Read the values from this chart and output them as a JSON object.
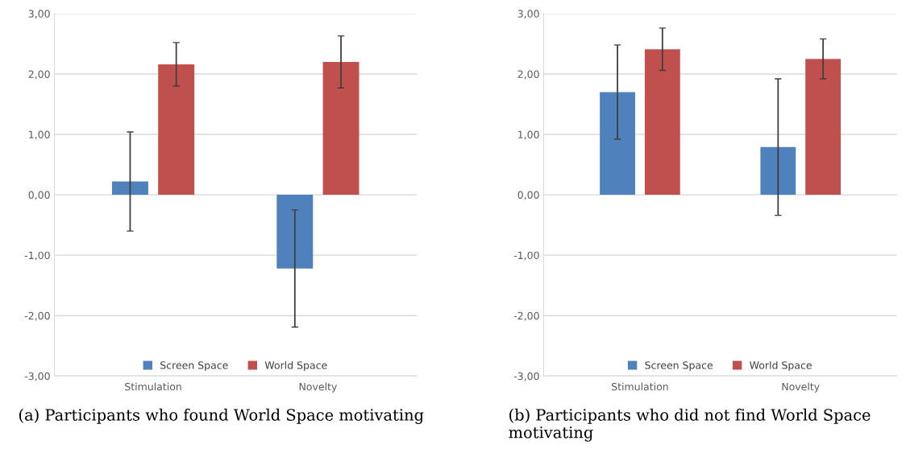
{
  "chart_data": [
    {
      "type": "bar",
      "title": "(a) Participants who found World Space motivating",
      "categories": [
        "Stimulation",
        "Novelty"
      ],
      "series": [
        {
          "name": "Screen Space",
          "color": "#4f81bd",
          "values": [
            0.22,
            -1.22
          ],
          "errors": [
            0.82,
            0.97
          ]
        },
        {
          "name": "World Space",
          "color": "#c0504d",
          "values": [
            2.16,
            2.2
          ],
          "errors": [
            0.36,
            0.43
          ]
        }
      ],
      "ylim": [
        -3,
        3
      ],
      "yticks": [
        {
          "value": -3,
          "label": "-3,00"
        },
        {
          "value": -2,
          "label": "-2,00"
        },
        {
          "value": -1,
          "label": "-1,00"
        },
        {
          "value": 0,
          "label": "0,00"
        },
        {
          "value": 1,
          "label": "1,00"
        },
        {
          "value": 2,
          "label": "2,00"
        },
        {
          "value": 3,
          "label": "3,00"
        }
      ],
      "grid": "y",
      "legend": "bottom"
    },
    {
      "type": "bar",
      "title": "(b) Participants who did not find World Space motivating",
      "categories": [
        "Stimulation",
        "Novelty"
      ],
      "series": [
        {
          "name": "Screen Space",
          "color": "#4f81bd",
          "values": [
            1.7,
            0.79
          ],
          "errors": [
            0.78,
            1.13
          ]
        },
        {
          "name": "World Space",
          "color": "#c0504d",
          "values": [
            2.41,
            2.25
          ],
          "errors": [
            0.35,
            0.33
          ]
        }
      ],
      "ylim": [
        -3,
        3
      ],
      "yticks": [
        {
          "value": -3,
          "label": "-3,00"
        },
        {
          "value": -2,
          "label": "-2,00"
        },
        {
          "value": -1,
          "label": "-1,00"
        },
        {
          "value": 0,
          "label": "0,00"
        },
        {
          "value": 1,
          "label": "1,00"
        },
        {
          "value": 2,
          "label": "2,00"
        },
        {
          "value": 3,
          "label": "3,00"
        }
      ],
      "grid": "y",
      "legend": "bottom"
    }
  ]
}
